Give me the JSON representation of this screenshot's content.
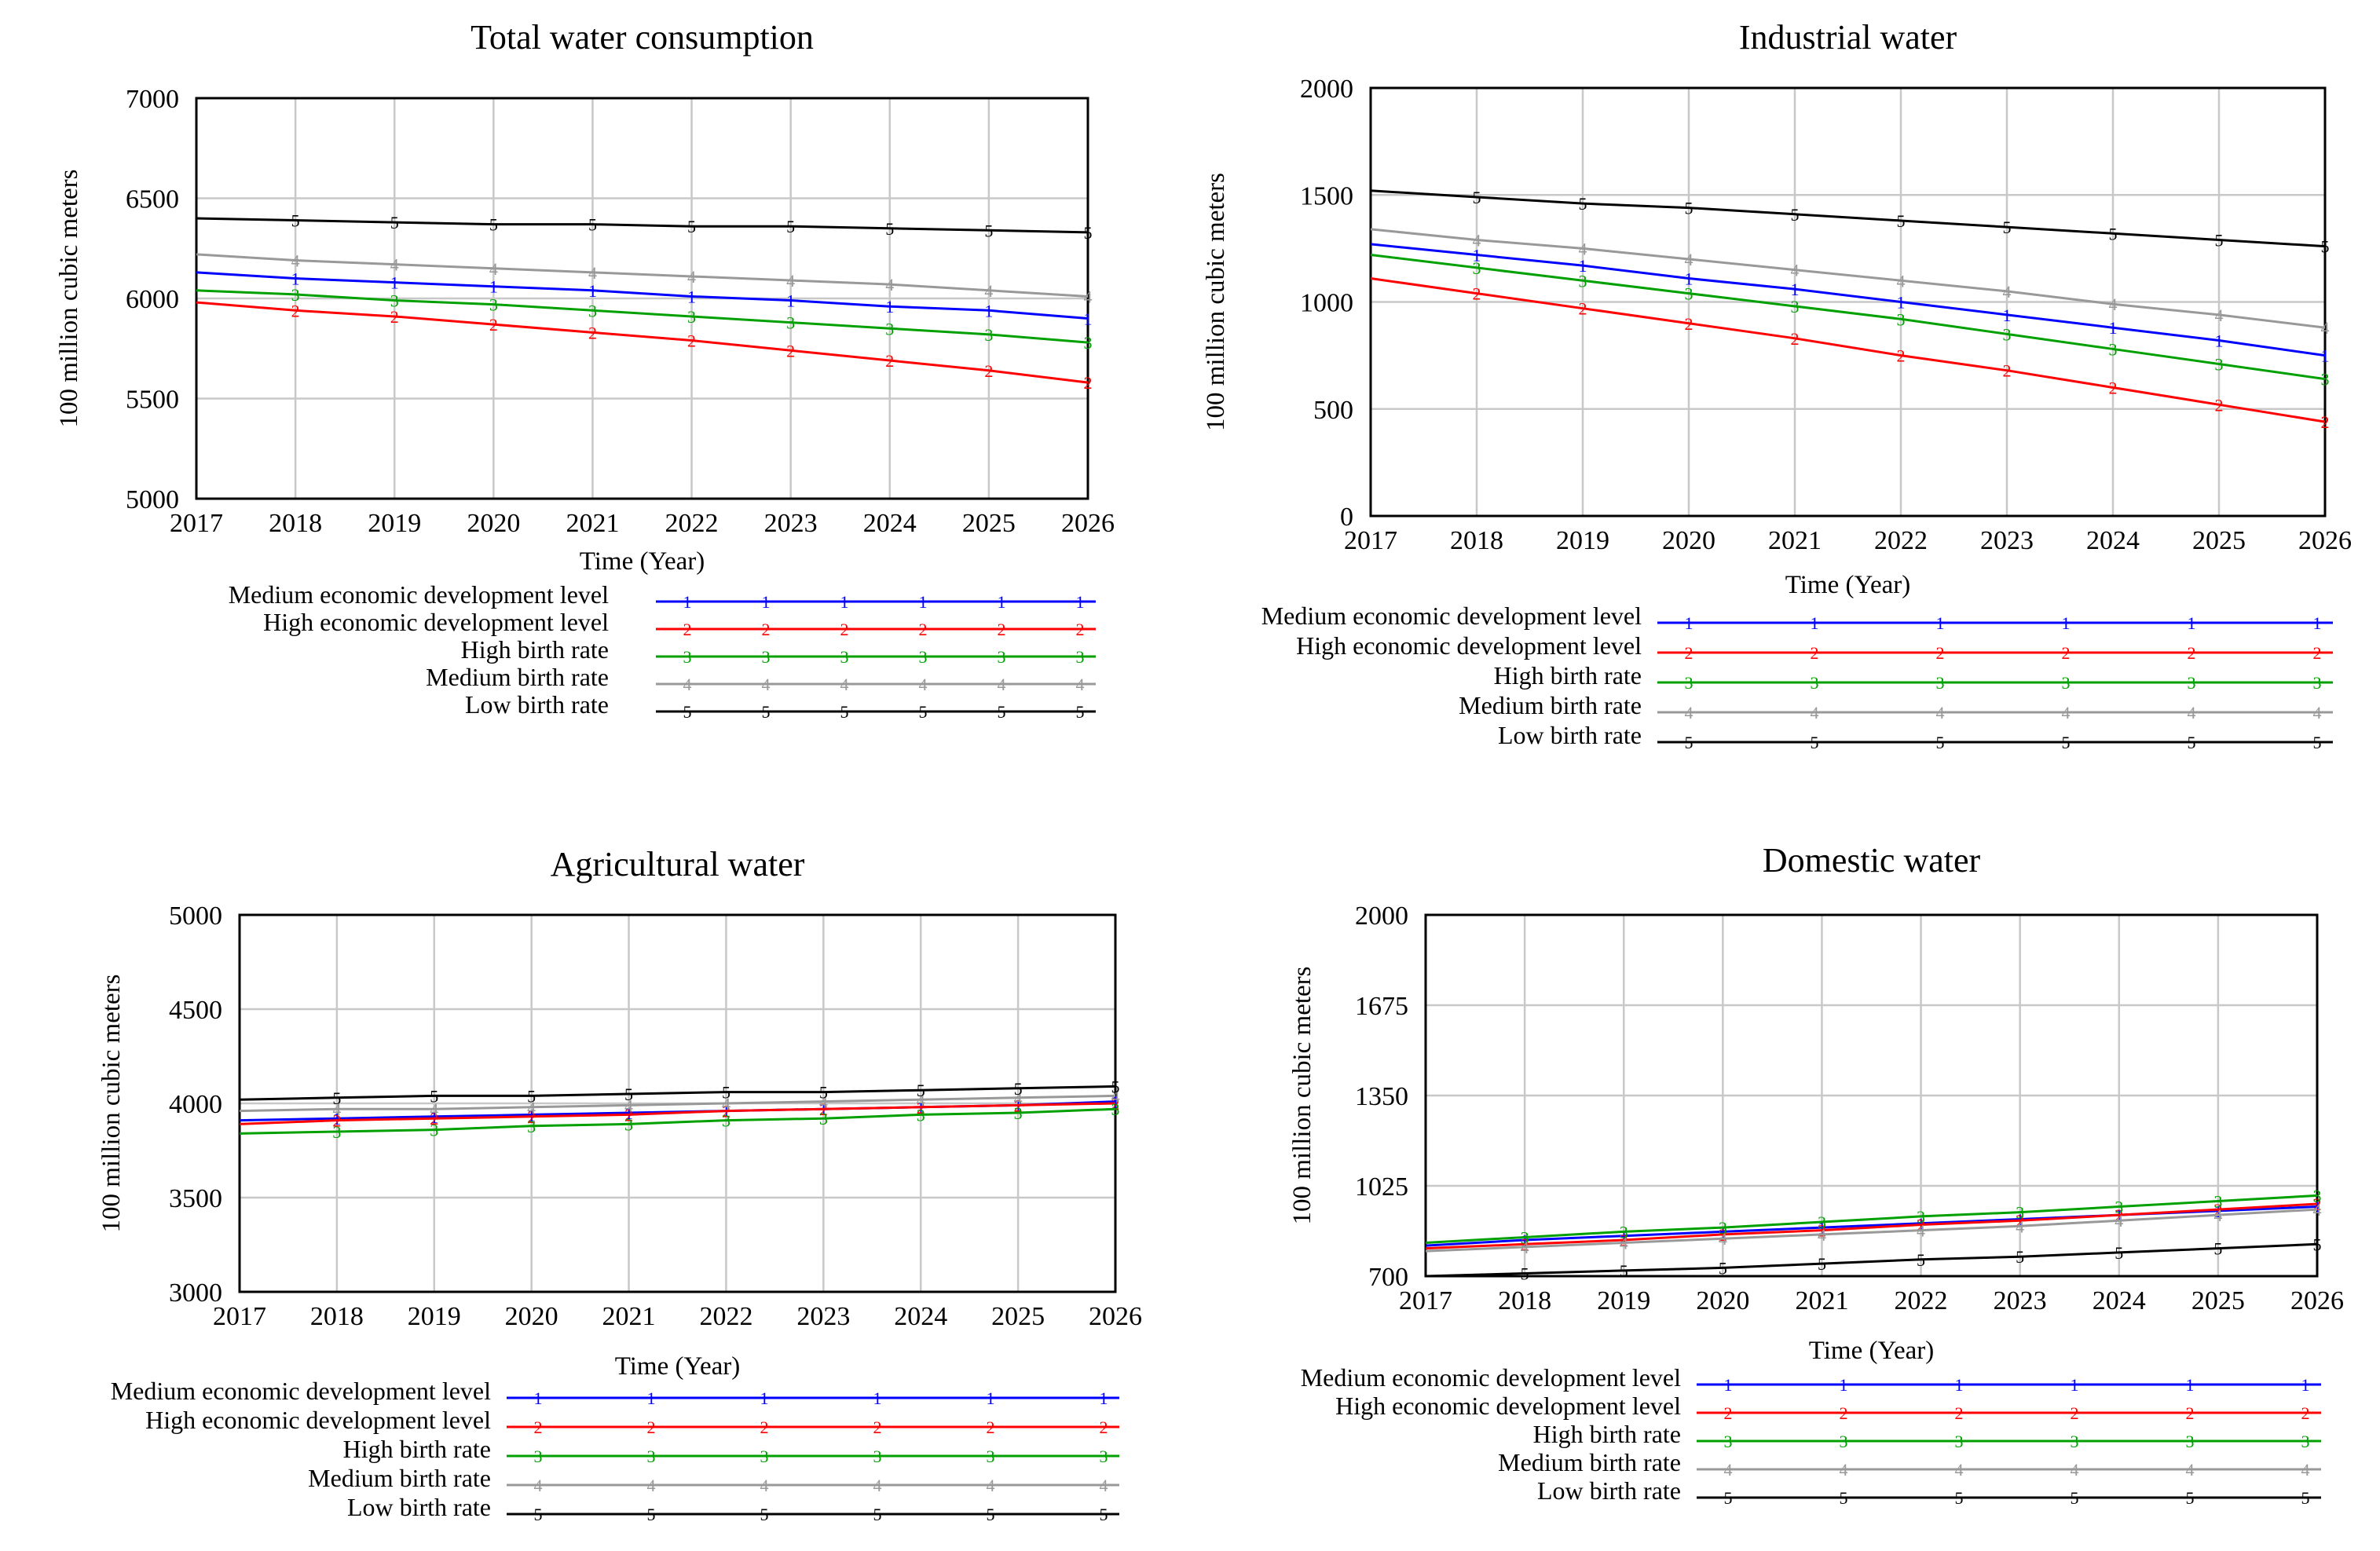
{
  "chart_data": [
    {
      "type": "line",
      "title": "Total water consumption",
      "xlabel": "Time (Year)",
      "ylabel": "100 million cubic meters",
      "x": [
        2017,
        2018,
        2019,
        2020,
        2021,
        2022,
        2023,
        2024,
        2025,
        2026
      ],
      "ylim": [
        5000,
        7000
      ],
      "yticks": [
        5000,
        5500,
        6000,
        6500,
        7000
      ],
      "series": [
        {
          "name": "Medium economic development level",
          "marker": "1",
          "color": "#0000ff",
          "values": [
            6130,
            6100,
            6080,
            6060,
            6040,
            6010,
            5990,
            5960,
            5940,
            5900
          ]
        },
        {
          "name": "High economic development level",
          "marker": "2",
          "color": "#ff0000",
          "values": [
            5980,
            5940,
            5910,
            5870,
            5830,
            5790,
            5740,
            5690,
            5640,
            5580
          ]
        },
        {
          "name": "High birth rate",
          "marker": "3",
          "color": "#00a000",
          "values": [
            6040,
            6020,
            5990,
            5970,
            5940,
            5910,
            5880,
            5850,
            5820,
            5780
          ]
        },
        {
          "name": "Medium birth rate",
          "marker": "4",
          "color": "#999999",
          "values": [
            6220,
            6190,
            6170,
            6150,
            6130,
            6110,
            6090,
            6070,
            6040,
            6010
          ]
        },
        {
          "name": "Low birth rate",
          "marker": "5",
          "color": "#000000",
          "values": [
            6400,
            6390,
            6380,
            6370,
            6370,
            6360,
            6360,
            6350,
            6340,
            6330
          ]
        }
      ]
    },
    {
      "type": "line",
      "title": "Industrial water",
      "xlabel": "Time (Year)",
      "ylabel": "100 million cubic meters",
      "x": [
        2017,
        2018,
        2019,
        2020,
        2021,
        2022,
        2023,
        2024,
        2025,
        2026
      ],
      "ylim": [
        0,
        2000
      ],
      "yticks": [
        0,
        500,
        1000,
        1500,
        2000
      ],
      "series": [
        {
          "name": "Medium economic development level",
          "marker": "1",
          "color": "#0000ff",
          "values": [
            1270,
            1220,
            1170,
            1110,
            1060,
            1000,
            940,
            880,
            820,
            750
          ]
        },
        {
          "name": "High economic development level",
          "marker": "2",
          "color": "#ff0000",
          "values": [
            1110,
            1040,
            970,
            900,
            830,
            750,
            680,
            600,
            520,
            440
          ]
        },
        {
          "name": "High birth rate",
          "marker": "3",
          "color": "#00a000",
          "values": [
            1220,
            1160,
            1100,
            1040,
            980,
            920,
            850,
            780,
            710,
            640
          ]
        },
        {
          "name": "Medium birth rate",
          "marker": "4",
          "color": "#999999",
          "values": [
            1340,
            1290,
            1250,
            1200,
            1150,
            1100,
            1050,
            990,
            940,
            880
          ]
        },
        {
          "name": "Low birth rate",
          "marker": "5",
          "color": "#000000",
          "values": [
            1520,
            1490,
            1460,
            1440,
            1410,
            1380,
            1350,
            1320,
            1290,
            1260
          ]
        }
      ]
    },
    {
      "type": "line",
      "title": "Agricultural water",
      "xlabel": "Time (Year)",
      "ylabel": "100 million cubic meters",
      "x": [
        2017,
        2018,
        2019,
        2020,
        2021,
        2022,
        2023,
        2024,
        2025,
        2026
      ],
      "ylim": [
        3000,
        5000
      ],
      "yticks": [
        3000,
        3500,
        4000,
        4500,
        5000
      ],
      "series": [
        {
          "name": "Medium economic development level",
          "marker": "1",
          "color": "#0000ff",
          "values": [
            3910,
            3920,
            3930,
            3940,
            3950,
            3960,
            3970,
            3980,
            3990,
            4010
          ]
        },
        {
          "name": "High economic development level",
          "marker": "2",
          "color": "#ff0000",
          "values": [
            3890,
            3910,
            3920,
            3930,
            3940,
            3960,
            3970,
            3980,
            3990,
            4000
          ]
        },
        {
          "name": "High birth rate",
          "marker": "3",
          "color": "#00a000",
          "values": [
            3840,
            3850,
            3860,
            3880,
            3890,
            3910,
            3920,
            3940,
            3950,
            3970
          ]
        },
        {
          "name": "Medium birth rate",
          "marker": "4",
          "color": "#999999",
          "values": [
            3960,
            3970,
            3970,
            3980,
            3990,
            4000,
            4010,
            4020,
            4030,
            4040
          ]
        },
        {
          "name": "Low birth rate",
          "marker": "5",
          "color": "#000000",
          "values": [
            4020,
            4030,
            4040,
            4040,
            4050,
            4060,
            4060,
            4070,
            4080,
            4090
          ]
        }
      ]
    },
    {
      "type": "line",
      "title": "Domestic water",
      "xlabel": "Time (Year)",
      "ylabel": "100 million cubic meters",
      "x": [
        2017,
        2018,
        2019,
        2020,
        2021,
        2022,
        2023,
        2024,
        2025,
        2026
      ],
      "ylim": [
        700,
        2000
      ],
      "yticks": [
        700,
        1025,
        1350,
        1675,
        2000
      ],
      "series": [
        {
          "name": "Medium economic development level",
          "marker": "1",
          "color": "#0000ff",
          "values": [
            810,
            830,
            845,
            860,
            875,
            890,
            905,
            920,
            935,
            950
          ]
        },
        {
          "name": "High economic development level",
          "marker": "2",
          "color": "#ff0000",
          "values": [
            800,
            815,
            830,
            850,
            865,
            885,
            900,
            920,
            940,
            960
          ]
        },
        {
          "name": "High birth rate",
          "marker": "3",
          "color": "#00a000",
          "values": [
            820,
            840,
            860,
            875,
            895,
            915,
            930,
            950,
            970,
            990
          ]
        },
        {
          "name": "Medium birth rate",
          "marker": "4",
          "color": "#999999",
          "values": [
            790,
            805,
            820,
            835,
            850,
            865,
            880,
            900,
            920,
            940
          ]
        },
        {
          "name": "Low birth rate",
          "marker": "5",
          "color": "#000000",
          "values": [
            700,
            710,
            720,
            730,
            745,
            760,
            770,
            785,
            800,
            815
          ]
        }
      ]
    }
  ]
}
